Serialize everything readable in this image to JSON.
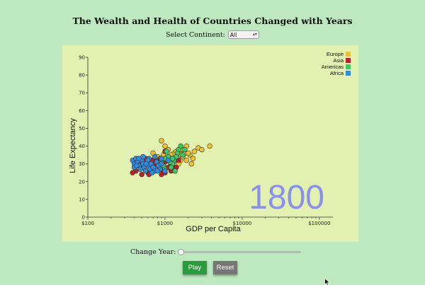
{
  "title": "The Wealth and Health of Countries Changed with Years",
  "controls": {
    "continent_label": "Select Continent:",
    "continent_value": "All",
    "year_label": "Change Year:",
    "year_slider_fraction": 0.0,
    "play_label": "Play",
    "reset_label": "Reset"
  },
  "chart_data": {
    "type": "scatter",
    "title": "The Wealth and Health of Countries Changed with Years",
    "xlabel": "GDP per Capita",
    "ylabel": "Life Expectancy",
    "xscale": "log",
    "xlim": [
      100,
      150000
    ],
    "ylim": [
      0,
      90
    ],
    "xticks": [
      100,
      1000,
      10000,
      100000
    ],
    "xtick_labels": [
      "$100",
      "$1000",
      "$10000",
      "$100000"
    ],
    "yticks": [
      0,
      10,
      20,
      30,
      40,
      50,
      60,
      70,
      80,
      90
    ],
    "grid": false,
    "legend_position": "top-right",
    "year_display": "1800",
    "series": [
      {
        "name": "Europe",
        "color": "#f2c12e",
        "points": [
          [
            1900,
            40
          ],
          [
            2700,
            39
          ],
          [
            2400,
            37
          ],
          [
            3800,
            40
          ],
          [
            3000,
            38
          ],
          [
            1700,
            38
          ],
          [
            1500,
            37
          ],
          [
            1800,
            36
          ],
          [
            1600,
            35
          ],
          [
            1400,
            34
          ],
          [
            1300,
            36
          ],
          [
            2100,
            35
          ],
          [
            2300,
            33
          ],
          [
            1200,
            35
          ],
          [
            1100,
            38
          ],
          [
            900,
            43
          ],
          [
            1000,
            40
          ],
          [
            800,
            34
          ],
          [
            700,
            36
          ],
          [
            1600,
            32
          ],
          [
            2200,
            30
          ],
          [
            1200,
            33
          ],
          [
            1300,
            31
          ],
          [
            1700,
            34
          ],
          [
            2000,
            36
          ],
          [
            1900,
            32
          ],
          [
            1400,
            37
          ],
          [
            950,
            35
          ],
          [
            1500,
            30
          ],
          [
            1100,
            32
          ]
        ]
      },
      {
        "name": "Asia",
        "color": "#b8202a",
        "points": [
          [
            1500,
            32
          ],
          [
            1200,
            30
          ],
          [
            1100,
            28
          ],
          [
            1000,
            31
          ],
          [
            950,
            26
          ],
          [
            900,
            24
          ],
          [
            850,
            27
          ],
          [
            800,
            29
          ],
          [
            760,
            32
          ],
          [
            700,
            30
          ],
          [
            650,
            27
          ],
          [
            600,
            25
          ],
          [
            560,
            33
          ],
          [
            520,
            28
          ],
          [
            500,
            24
          ],
          [
            480,
            31
          ],
          [
            450,
            29
          ],
          [
            420,
            26
          ],
          [
            400,
            32
          ],
          [
            380,
            25
          ],
          [
            1100,
            34
          ],
          [
            1000,
            37
          ],
          [
            950,
            29
          ],
          [
            1300,
            28
          ],
          [
            870,
            33
          ],
          [
            680,
            32
          ],
          [
            720,
            26
          ],
          [
            1000,
            25
          ],
          [
            1200,
            26
          ],
          [
            800,
            31
          ],
          [
            560,
            29
          ],
          [
            620,
            24
          ],
          [
            1400,
            28
          ],
          [
            880,
            28
          ]
        ]
      },
      {
        "name": "Americas",
        "color": "#3cc96a",
        "points": [
          [
            1600,
            40
          ],
          [
            1500,
            38
          ],
          [
            1450,
            36
          ],
          [
            1400,
            34
          ],
          [
            1300,
            32
          ],
          [
            1250,
            30
          ],
          [
            1200,
            28
          ],
          [
            1150,
            31
          ],
          [
            1100,
            34
          ],
          [
            1050,
            37
          ],
          [
            1000,
            33
          ],
          [
            950,
            29
          ],
          [
            1700,
            35
          ],
          [
            900,
            31
          ],
          [
            1000,
            27
          ],
          [
            1350,
            26
          ],
          [
            1800,
            38
          ],
          [
            1250,
            33
          ]
        ]
      },
      {
        "name": "Africa",
        "color": "#2f8be0",
        "points": [
          [
            380,
            32
          ],
          [
            400,
            30
          ],
          [
            420,
            33
          ],
          [
            440,
            31
          ],
          [
            460,
            29
          ],
          [
            480,
            27
          ],
          [
            500,
            32
          ],
          [
            520,
            30
          ],
          [
            540,
            28
          ],
          [
            560,
            26
          ],
          [
            580,
            31
          ],
          [
            600,
            29
          ],
          [
            620,
            33
          ],
          [
            640,
            27
          ],
          [
            660,
            30
          ],
          [
            700,
            28
          ],
          [
            740,
            26
          ],
          [
            780,
            31
          ],
          [
            820,
            29
          ],
          [
            860,
            27
          ],
          [
            900,
            30
          ],
          [
            400,
            28
          ],
          [
            460,
            33
          ],
          [
            520,
            34
          ],
          [
            600,
            32
          ],
          [
            680,
            25
          ],
          [
            740,
            34
          ],
          [
            800,
            26
          ],
          [
            900,
            33
          ],
          [
            1000,
            26
          ],
          [
            1100,
            32
          ],
          [
            430,
            29
          ],
          [
            570,
            30
          ]
        ]
      }
    ]
  }
}
